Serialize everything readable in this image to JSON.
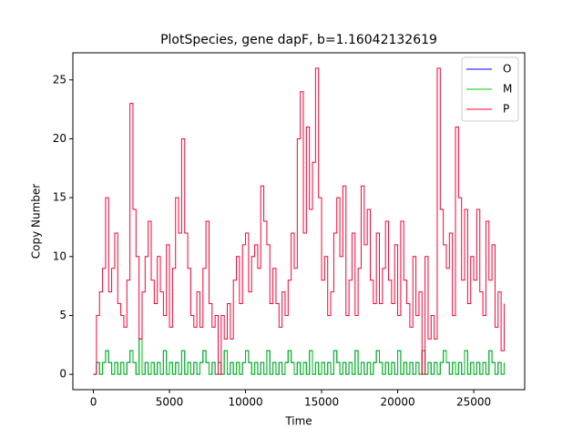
{
  "chart_data": {
    "type": "line",
    "title": "PlotSpecies, gene dapF, b=1.16042132619",
    "x_label": "Time",
    "y_label": "Copy Number",
    "xlim": [
      -1350,
      28350
    ],
    "ylim": [
      -1.3,
      27.3
    ],
    "xticks": [
      0,
      5000,
      10000,
      15000,
      20000,
      25000
    ],
    "yticks": [
      0,
      5,
      10,
      15,
      20,
      25
    ],
    "legend": "upper right",
    "step": true,
    "x": [
      0,
      200,
      400,
      600,
      800,
      1000,
      1200,
      1400,
      1600,
      1800,
      2000,
      2200,
      2400,
      2600,
      2800,
      3000,
      3200,
      3400,
      3600,
      3800,
      4000,
      4200,
      4400,
      4600,
      4800,
      5000,
      5200,
      5400,
      5600,
      5800,
      6000,
      6200,
      6400,
      6600,
      6800,
      7000,
      7200,
      7400,
      7600,
      7800,
      8000,
      8200,
      8400,
      8600,
      8800,
      9000,
      9200,
      9400,
      9600,
      9800,
      10000,
      10200,
      10400,
      10600,
      10800,
      11000,
      11200,
      11400,
      11600,
      11800,
      12000,
      12200,
      12400,
      12600,
      12800,
      13000,
      13200,
      13400,
      13600,
      13800,
      14000,
      14200,
      14400,
      14600,
      14800,
      15000,
      15200,
      15400,
      15600,
      15800,
      16000,
      16200,
      16400,
      16600,
      16800,
      17000,
      17200,
      17400,
      17600,
      17800,
      18000,
      18200,
      18400,
      18600,
      18800,
      19000,
      19200,
      19400,
      19600,
      19800,
      20000,
      20200,
      20400,
      20600,
      20800,
      21000,
      21200,
      21400,
      21600,
      21800,
      22000,
      22200,
      22400,
      22600,
      22800,
      23000,
      23200,
      23400,
      23600,
      23800,
      24000,
      24200,
      24400,
      24600,
      24800,
      25000,
      25200,
      25400,
      25600,
      25800,
      26000,
      26200,
      26400,
      26600,
      26800,
      27000
    ],
    "series": [
      {
        "name": "O",
        "color": "#0000ff",
        "values": [
          0,
          1,
          0,
          1,
          2,
          1,
          0,
          1,
          0,
          1,
          0,
          1,
          2,
          1,
          0,
          3,
          0,
          1,
          0,
          1,
          0,
          1,
          0,
          2,
          0,
          1,
          0,
          1,
          0,
          2,
          0,
          1,
          0,
          1,
          0,
          1,
          2,
          1,
          0,
          1,
          0,
          1,
          0,
          2,
          0,
          1,
          0,
          1,
          0,
          1,
          2,
          1,
          0,
          1,
          0,
          1,
          0,
          2,
          0,
          1,
          0,
          1,
          0,
          1,
          2,
          1,
          0,
          1,
          0,
          1,
          0,
          2,
          0,
          1,
          0,
          1,
          0,
          1,
          0,
          2,
          1,
          0,
          1,
          0,
          1,
          0,
          2,
          0,
          1,
          0,
          1,
          0,
          1,
          2,
          1,
          0,
          1,
          0,
          1,
          0,
          2,
          0,
          1,
          0,
          1,
          0,
          1,
          0,
          2,
          0,
          1,
          0,
          1,
          0,
          1,
          2,
          1,
          0,
          1,
          0,
          1,
          0,
          2,
          0,
          1,
          0,
          1,
          0,
          1,
          0,
          2,
          1,
          0,
          1,
          0,
          1
        ]
      },
      {
        "name": "M",
        "color": "#00cc00",
        "values": [
          0,
          1,
          0,
          1,
          2,
          1,
          0,
          1,
          0,
          1,
          0,
          1,
          2,
          1,
          0,
          3,
          0,
          1,
          0,
          1,
          0,
          1,
          0,
          2,
          0,
          1,
          0,
          1,
          0,
          2,
          0,
          1,
          0,
          1,
          0,
          1,
          2,
          1,
          0,
          1,
          0,
          1,
          0,
          2,
          0,
          1,
          0,
          1,
          0,
          1,
          2,
          1,
          0,
          1,
          0,
          1,
          0,
          2,
          0,
          1,
          0,
          1,
          0,
          1,
          2,
          1,
          0,
          1,
          0,
          1,
          0,
          2,
          0,
          1,
          0,
          1,
          0,
          1,
          0,
          2,
          1,
          0,
          1,
          0,
          1,
          0,
          2,
          0,
          1,
          0,
          1,
          0,
          1,
          2,
          1,
          0,
          1,
          0,
          1,
          0,
          2,
          0,
          1,
          0,
          1,
          0,
          1,
          0,
          2,
          0,
          1,
          0,
          1,
          0,
          1,
          2,
          1,
          0,
          1,
          0,
          1,
          0,
          2,
          0,
          1,
          0,
          1,
          0,
          1,
          0,
          2,
          1,
          0,
          1,
          0,
          1
        ]
      },
      {
        "name": "P",
        "color": "#ff0033",
        "values": [
          0,
          5,
          7,
          9,
          15,
          7,
          9,
          12,
          6,
          5,
          4,
          8,
          23,
          14,
          10,
          3,
          7,
          10,
          13,
          8,
          6,
          10,
          7,
          5,
          11,
          4,
          9,
          15,
          12,
          20,
          12,
          9,
          5,
          4,
          7,
          4,
          9,
          13,
          6,
          4,
          5,
          0,
          5,
          3,
          6,
          3,
          8,
          10,
          6,
          11,
          12,
          7,
          10,
          11,
          9,
          16,
          13,
          11,
          6,
          9,
          6,
          4,
          7,
          5,
          8,
          12,
          9,
          20,
          24,
          12,
          21,
          14,
          18,
          26,
          15,
          8,
          10,
          5,
          7,
          12,
          15,
          10,
          16,
          5,
          8,
          12,
          5,
          9,
          16,
          11,
          14,
          8,
          6,
          12,
          6,
          9,
          13,
          8,
          6,
          11,
          5,
          13,
          8,
          6,
          4,
          10,
          5,
          7,
          0,
          10,
          3,
          5,
          3,
          26,
          14,
          11,
          9,
          12,
          5,
          21,
          15,
          8,
          14,
          6,
          10,
          8,
          14,
          7,
          5,
          13,
          8,
          11,
          4,
          7,
          2,
          6
        ]
      }
    ]
  }
}
